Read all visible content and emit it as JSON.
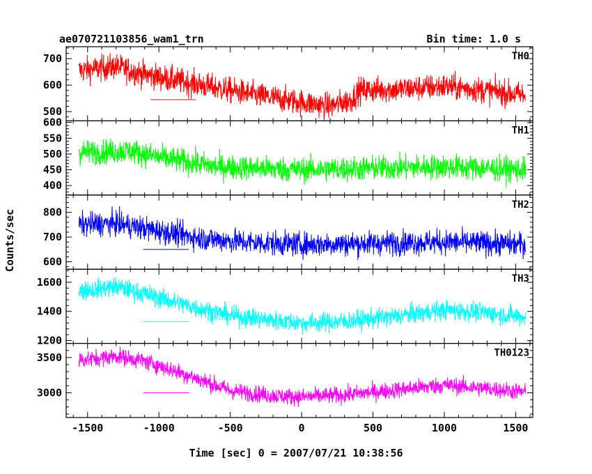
{
  "header": {
    "left_title": "ae070721103856_wam1_trn",
    "right_title": "Bin time: 1.0 s"
  },
  "chart_data": {
    "type": "line",
    "title": "ae070721103856_wam1_trn",
    "subtitle": "Bin time: 1.0 s",
    "xlabel": "Time [sec] 0 = 2007/07/21 10:38:56",
    "ylabel": "Counts/sec",
    "xlim": [
      -1650,
      1620
    ],
    "xticks": [
      -1500,
      -1000,
      -500,
      0,
      500,
      1000,
      1500
    ],
    "grid": false,
    "legend": "none",
    "x_start": -1560,
    "x_end": 1570,
    "panels": [
      {
        "name": "TH0",
        "color": "#ff0000",
        "ylim": [
          465,
          745
        ],
        "yticks": [
          500,
          600,
          700
        ],
        "noise": 35,
        "trend": [
          [
            -1560,
            655
          ],
          [
            -1300,
            670
          ],
          [
            -1100,
            640
          ],
          [
            -700,
            600
          ],
          [
            -300,
            560
          ],
          [
            0,
            535
          ],
          [
            200,
            520
          ],
          [
            350,
            545
          ],
          [
            400,
            580
          ],
          [
            700,
            585
          ],
          [
            1000,
            595
          ],
          [
            1300,
            580
          ],
          [
            1570,
            560
          ]
        ],
        "min_marker": [
          -1000,
          545
        ]
      },
      {
        "name": "TH1",
        "color": "#00ff00",
        "ylim": [
          370,
          605
        ],
        "yticks": [
          400,
          450,
          500,
          550,
          600
        ],
        "noise": 28,
        "trend": [
          [
            -1560,
            505
          ],
          [
            -1200,
            510
          ],
          [
            -1000,
            490
          ],
          [
            -600,
            460
          ],
          [
            -300,
            455
          ],
          [
            0,
            450
          ],
          [
            500,
            455
          ],
          [
            1000,
            460
          ],
          [
            1570,
            450
          ]
        ],
        "min_marker": null
      },
      {
        "name": "TH2",
        "color": "#0000ff",
        "ylim": [
          570,
          870
        ],
        "yticks": [
          600,
          700,
          800
        ],
        "noise": 35,
        "trend": [
          [
            -1560,
            750
          ],
          [
            -1300,
            755
          ],
          [
            -1000,
            725
          ],
          [
            -700,
            695
          ],
          [
            -400,
            680
          ],
          [
            0,
            670
          ],
          [
            500,
            675
          ],
          [
            1000,
            680
          ],
          [
            1570,
            670
          ]
        ],
        "min_marker": [
          -1050,
          650
        ]
      },
      {
        "name": "TH3",
        "color": "#00ffff",
        "ylim": [
          1180,
          1690
        ],
        "yticks": [
          1200,
          1400,
          1600
        ],
        "noise": 48,
        "trend": [
          [
            -1560,
            1540
          ],
          [
            -1300,
            1570
          ],
          [
            -1100,
            1520
          ],
          [
            -800,
            1440
          ],
          [
            -500,
            1370
          ],
          [
            -200,
            1340
          ],
          [
            0,
            1320
          ],
          [
            300,
            1330
          ],
          [
            600,
            1360
          ],
          [
            1000,
            1410
          ],
          [
            1300,
            1390
          ],
          [
            1570,
            1360
          ]
        ],
        "min_marker": [
          -1050,
          1330
        ]
      },
      {
        "name": "TH0123",
        "color": "#ff00ff",
        "ylim": [
          2650,
          3700
        ],
        "yticks": [
          3000,
          3500
        ],
        "noise": 85,
        "trend": [
          [
            -1560,
            3460
          ],
          [
            -1300,
            3520
          ],
          [
            -1100,
            3450
          ],
          [
            -800,
            3250
          ],
          [
            -500,
            3030
          ],
          [
            -200,
            2960
          ],
          [
            0,
            2940
          ],
          [
            300,
            2970
          ],
          [
            600,
            3030
          ],
          [
            1000,
            3110
          ],
          [
            1300,
            3060
          ],
          [
            1570,
            3010
          ]
        ],
        "min_marker": [
          -1050,
          3000
        ]
      }
    ]
  }
}
